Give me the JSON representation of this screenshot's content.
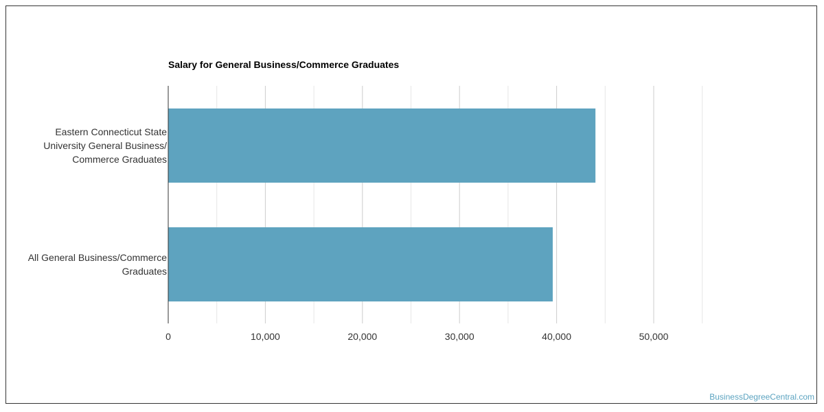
{
  "chart_data": {
    "type": "bar",
    "orientation": "horizontal",
    "title": "Salary for General Business/Commerce Graduates",
    "categories": [
      [
        "Eastern Connecticut State",
        "University General Business/",
        "Commerce Graduates"
      ],
      [
        "All General Business/Commerce",
        "Graduates"
      ]
    ],
    "values": [
      44000,
      39600
    ],
    "xlim": [
      0,
      55000
    ],
    "ticks": [
      0,
      10000,
      20000,
      30000,
      40000,
      50000
    ],
    "tick_labels": [
      "0",
      "10,000",
      "20,000",
      "30,000",
      "40,000",
      "50,000"
    ],
    "grid": true,
    "bar_color": "#5ea3bf"
  },
  "watermark": "BusinessDegreeCentral.com"
}
